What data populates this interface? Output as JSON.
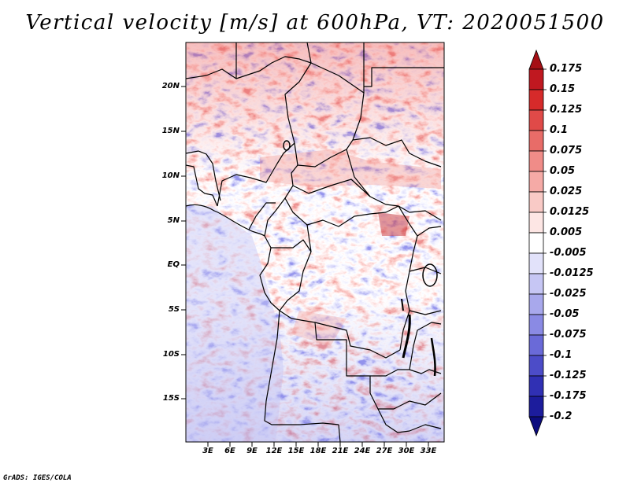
{
  "title": "Vertical velocity [m/s] at 600hPa, VT: 2020051500",
  "footer": "GrADS: IGES/COLA",
  "map": {
    "lat_labels": [
      "20N",
      "15N",
      "10N",
      "5N",
      "EQ",
      "5S",
      "10S",
      "15S"
    ],
    "lon_labels": [
      "3E",
      "6E",
      "9E",
      "12E",
      "15E",
      "18E",
      "21E",
      "24E",
      "27E",
      "30E",
      "33E"
    ]
  },
  "colorbar": {
    "labels": [
      "0.175",
      "0.15",
      "0.125",
      "0.1",
      "0.075",
      "0.05",
      "0.025",
      "0.0125",
      "0.005",
      "-0.005",
      "-0.0125",
      "-0.025",
      "-0.05",
      "-0.075",
      "-0.1",
      "-0.125",
      "-0.175",
      "-0.2"
    ],
    "colors": [
      "#a50f15",
      "#c01820",
      "#d62a2a",
      "#e04a48",
      "#e86c68",
      "#f08c88",
      "#f5aaa6",
      "#f9cac6",
      "#fde6e4",
      "#ffffff",
      "#e2e2fa",
      "#c6c6f4",
      "#a8a8ec",
      "#8a8ae4",
      "#6a6ad8",
      "#4c4cc8",
      "#3030b4",
      "#1c1c9c",
      "#0c0c7e"
    ]
  },
  "palette": {
    "warm_strong": "#e04a48",
    "warm_mid": "#f08c88",
    "warm_light": "#f9cac6",
    "cool_light": "#d4d4f6",
    "cool_mid": "#a8a8ec",
    "cool_strong": "#6a6ad8"
  }
}
